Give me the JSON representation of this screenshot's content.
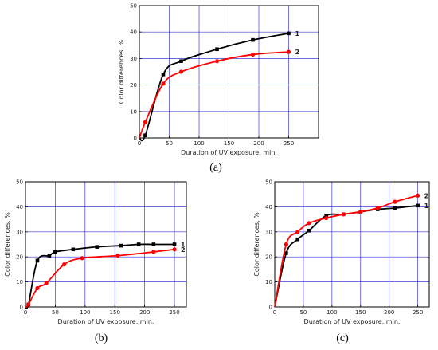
{
  "chart_data": [
    {
      "panel": "(a)",
      "type": "line",
      "xlabel": "Duration of UV exposure, min.",
      "ylabel": "Color differences, %",
      "xlim": [
        0,
        300
      ],
      "ylim": [
        0,
        50
      ],
      "xticks": [
        0,
        50,
        100,
        150,
        200,
        250
      ],
      "yticks": [
        0,
        10,
        20,
        30,
        40,
        50
      ],
      "grid": true,
      "series": [
        {
          "name": "1",
          "color": "#000000",
          "marker": "square",
          "x": [
            10,
            40,
            70,
            130,
            190,
            250
          ],
          "y": [
            1,
            24,
            29,
            33.5,
            37,
            39.5
          ]
        },
        {
          "name": "2",
          "color": "#ff0000",
          "marker": "circle",
          "x": [
            10,
            40,
            70,
            130,
            190,
            250
          ],
          "y": [
            6,
            20.5,
            25,
            29,
            31.5,
            32.5
          ]
        }
      ]
    },
    {
      "panel": "(b)",
      "type": "line",
      "xlabel": "Duration of UV exposure, min.",
      "ylabel": "Color differences, %",
      "xlim": [
        0,
        270
      ],
      "ylim": [
        0,
        50
      ],
      "xticks": [
        0,
        50,
        100,
        150,
        200,
        250
      ],
      "yticks": [
        0,
        10,
        20,
        30,
        40,
        50
      ],
      "grid": true,
      "series": [
        {
          "name": "1",
          "color": "#000000",
          "marker": "square",
          "x": [
            5,
            20,
            40,
            50,
            80,
            120,
            160,
            190,
            215,
            250
          ],
          "y": [
            1,
            18.5,
            20.5,
            22,
            23,
            24,
            24.5,
            25,
            25,
            25
          ]
        },
        {
          "name": "2",
          "color": "#ff0000",
          "marker": "circle",
          "x": [
            5,
            20,
            35,
            65,
            95,
            155,
            215,
            250
          ],
          "y": [
            1,
            7.5,
            9.5,
            17,
            19.5,
            20.5,
            22,
            23
          ]
        }
      ]
    },
    {
      "panel": "(c)",
      "type": "line",
      "xlabel": "Duration of UV exposure, min.",
      "ylabel": "Color differences, %",
      "xlim": [
        0,
        270
      ],
      "ylim": [
        0,
        50
      ],
      "xticks": [
        0,
        50,
        100,
        150,
        200,
        250
      ],
      "yticks": [
        0,
        10,
        20,
        30,
        40,
        50
      ],
      "grid": true,
      "series": [
        {
          "name": "1",
          "color": "#000000",
          "marker": "square",
          "x": [
            20,
            40,
            60,
            90,
            120,
            150,
            180,
            210,
            250
          ],
          "y": [
            21.5,
            27,
            30.5,
            36.5,
            37,
            38,
            39,
            39.5,
            40.5
          ]
        },
        {
          "name": "2",
          "color": "#ff0000",
          "marker": "circle",
          "x": [
            20,
            40,
            60,
            90,
            120,
            150,
            180,
            210,
            250
          ],
          "y": [
            25,
            30,
            33.5,
            35.5,
            37,
            38,
            39.5,
            42,
            44.5
          ]
        }
      ]
    }
  ]
}
